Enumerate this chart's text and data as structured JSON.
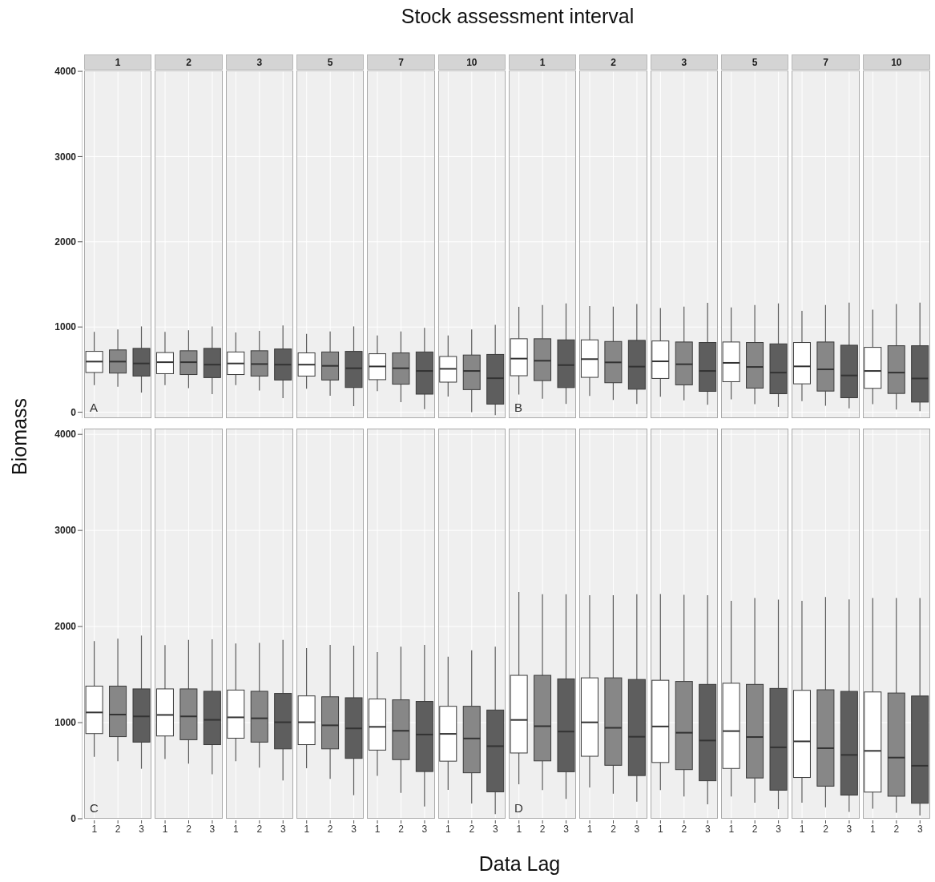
{
  "chart_data": [
    {
      "type": "other",
      "title": "Stock assessment interval",
      "xlabel": "Data Lag",
      "ylabel": "Biomass"
    },
    {
      "type": "box",
      "categories": [
        null,
        null,
        null,
        null,
        null,
        null,
        null,
        null,
        null,
        null,
        null,
        null,
        null,
        null,
        null,
        null,
        null,
        null,
        null,
        null,
        null,
        null,
        null,
        null,
        null,
        null,
        null,
        null,
        null,
        null,
        null,
        null,
        null,
        null,
        null,
        null
      ],
      "colors": [
        "#ffffff",
        "#878787",
        "#5e5e5e",
        "#ffffff",
        "#878787",
        "#5e5e5e",
        "#ffffff",
        "#878787",
        "#5e5e5e",
        "#ffffff",
        "#878787",
        "#5e5e5e",
        "#ffffff",
        "#878787",
        "#5e5e5e",
        "#ffffff",
        "#878787",
        "#5e5e5e",
        "#ffffff",
        "#878787",
        "#5e5e5e",
        "#ffffff",
        "#878787",
        "#5e5e5e",
        "#ffffff",
        "#878787",
        "#5e5e5e",
        "#ffffff",
        "#878787",
        "#5e5e5e",
        "#ffffff",
        "#878787",
        "#5e5e5e",
        "#ffffff",
        "#878787",
        "#5e5e5e"
      ],
      "ylim": [
        -70,
        4010
      ],
      "yticks": [
        0,
        1000,
        2000,
        3000,
        4000
      ],
      "grid": true,
      "tick_labels": "y",
      "annotations": [
        "1",
        "2",
        "3",
        "5",
        "7",
        "10",
        "1",
        "2",
        "3",
        "5",
        "7",
        "10",
        "A",
        "B"
      ],
      "boxes": [
        {
          "low": 318,
          "q1": 466,
          "median": 594,
          "q3": 714,
          "high": 943
        },
        {
          "low": 300,
          "q1": 459,
          "median": 594,
          "q3": 731,
          "high": 972
        },
        {
          "low": 230,
          "q1": 424,
          "median": 572,
          "q3": 749,
          "high": 1007
        },
        {
          "low": 318,
          "q1": 452,
          "median": 587,
          "q3": 700,
          "high": 943
        },
        {
          "low": 283,
          "q1": 442,
          "median": 587,
          "q3": 721,
          "high": 961
        },
        {
          "low": 212,
          "q1": 406,
          "median": 558,
          "q3": 749,
          "high": 1007
        },
        {
          "low": 318,
          "q1": 442,
          "median": 572,
          "q3": 707,
          "high": 936
        },
        {
          "low": 254,
          "q1": 424,
          "median": 565,
          "q3": 721,
          "high": 954
        },
        {
          "low": 166,
          "q1": 378,
          "median": 558,
          "q3": 742,
          "high": 1018
        },
        {
          "low": 276,
          "q1": 424,
          "median": 558,
          "q3": 696,
          "high": 919
        },
        {
          "low": 194,
          "q1": 378,
          "median": 544,
          "q3": 707,
          "high": 947
        },
        {
          "low": 71,
          "q1": 290,
          "median": 516,
          "q3": 714,
          "high": 1007
        },
        {
          "low": 247,
          "q1": 382,
          "median": 537,
          "q3": 686,
          "high": 901
        },
        {
          "low": 117,
          "q1": 329,
          "median": 516,
          "q3": 696,
          "high": 947
        },
        {
          "low": 35,
          "q1": 212,
          "median": 484,
          "q3": 707,
          "high": 989
        },
        {
          "low": 184,
          "q1": 353,
          "median": 509,
          "q3": 654,
          "high": 901
        },
        {
          "low": 0,
          "q1": 265,
          "median": 484,
          "q3": 671,
          "high": 972
        },
        {
          "low": -35,
          "q1": 95,
          "median": 399,
          "q3": 678,
          "high": 1025
        },
        {
          "low": 208,
          "q1": 428,
          "median": 629,
          "q3": 862,
          "high": 1236
        },
        {
          "low": 157,
          "q1": 371,
          "median": 604,
          "q3": 862,
          "high": 1258
        },
        {
          "low": 97,
          "q1": 289,
          "median": 553,
          "q3": 849,
          "high": 1277
        },
        {
          "low": 192,
          "q1": 409,
          "median": 623,
          "q3": 849,
          "high": 1245
        },
        {
          "low": 145,
          "q1": 346,
          "median": 585,
          "q3": 830,
          "high": 1239
        },
        {
          "low": 97,
          "q1": 270,
          "median": 535,
          "q3": 843,
          "high": 1270
        },
        {
          "low": 182,
          "q1": 396,
          "median": 597,
          "q3": 836,
          "high": 1223
        },
        {
          "low": 138,
          "q1": 321,
          "median": 563,
          "q3": 824,
          "high": 1239
        },
        {
          "low": 88,
          "q1": 245,
          "median": 484,
          "q3": 818,
          "high": 1283
        },
        {
          "low": 151,
          "q1": 358,
          "median": 579,
          "q3": 824,
          "high": 1230
        },
        {
          "low": 94,
          "q1": 283,
          "median": 531,
          "q3": 818,
          "high": 1258
        },
        {
          "low": 63,
          "q1": 217,
          "median": 465,
          "q3": 802,
          "high": 1277
        },
        {
          "low": 129,
          "q1": 333,
          "median": 538,
          "q3": 818,
          "high": 1189
        },
        {
          "low": 75,
          "q1": 248,
          "median": 503,
          "q3": 824,
          "high": 1258
        },
        {
          "low": 44,
          "q1": 170,
          "median": 431,
          "q3": 786,
          "high": 1286
        },
        {
          "low": 94,
          "q1": 280,
          "median": 484,
          "q3": 761,
          "high": 1204
        },
        {
          "low": 31,
          "q1": 220,
          "median": 465,
          "q3": 780,
          "high": 1270
        },
        {
          "low": 13,
          "q1": 119,
          "median": 396,
          "q3": 780,
          "high": 1286
        }
      ]
    },
    {
      "type": "box",
      "categories": [
        "1",
        "2",
        "3",
        "1",
        "2",
        "3",
        "1",
        "2",
        "3",
        "1",
        "2",
        "3",
        "1",
        "2",
        "3",
        "1",
        "2",
        "3",
        "1",
        "2",
        "3",
        "1",
        "2",
        "3",
        "1",
        "2",
        "3",
        "1",
        "2",
        "3",
        "1",
        "2",
        "3",
        "1",
        "2",
        "3"
      ],
      "colors": [
        "#ffffff",
        "#878787",
        "#5e5e5e",
        "#ffffff",
        "#878787",
        "#5e5e5e",
        "#ffffff",
        "#878787",
        "#5e5e5e",
        "#ffffff",
        "#878787",
        "#5e5e5e",
        "#ffffff",
        "#878787",
        "#5e5e5e",
        "#ffffff",
        "#878787",
        "#5e5e5e",
        "#ffffff",
        "#878787",
        "#5e5e5e",
        "#ffffff",
        "#878787",
        "#5e5e5e",
        "#ffffff",
        "#878787",
        "#5e5e5e",
        "#ffffff",
        "#878787",
        "#5e5e5e",
        "#ffffff",
        "#878787",
        "#5e5e5e",
        "#ffffff",
        "#878787",
        "#5e5e5e"
      ],
      "ylim": [
        0,
        4060
      ],
      "yticks": [
        0,
        1000,
        2000,
        3000,
        4000
      ],
      "grid": true,
      "annotations": [
        "C",
        "D"
      ],
      "boxes": [
        {
          "low": 644,
          "q1": 886,
          "median": 1106,
          "q3": 1380,
          "high": 1849
        },
        {
          "low": 599,
          "q1": 854,
          "median": 1084,
          "q3": 1380,
          "high": 1874
        },
        {
          "low": 520,
          "q1": 797,
          "median": 1065,
          "q3": 1351,
          "high": 1906
        },
        {
          "low": 622,
          "q1": 861,
          "median": 1080,
          "q3": 1351,
          "high": 1807
        },
        {
          "low": 574,
          "q1": 822,
          "median": 1065,
          "q3": 1351,
          "high": 1861
        },
        {
          "low": 462,
          "q1": 771,
          "median": 1029,
          "q3": 1326,
          "high": 1868
        },
        {
          "low": 599,
          "q1": 838,
          "median": 1055,
          "q3": 1339,
          "high": 1823
        },
        {
          "low": 532,
          "q1": 797,
          "median": 1045,
          "q3": 1326,
          "high": 1829
        },
        {
          "low": 398,
          "q1": 727,
          "median": 1004,
          "q3": 1304,
          "high": 1861
        },
        {
          "low": 526,
          "q1": 771,
          "median": 1004,
          "q3": 1278,
          "high": 1775
        },
        {
          "low": 414,
          "q1": 727,
          "median": 972,
          "q3": 1269,
          "high": 1810
        },
        {
          "low": 245,
          "q1": 628,
          "median": 940,
          "q3": 1259,
          "high": 1801
        },
        {
          "low": 446,
          "q1": 714,
          "median": 956,
          "q3": 1246,
          "high": 1734
        },
        {
          "low": 268,
          "q1": 615,
          "median": 915,
          "q3": 1237,
          "high": 1791
        },
        {
          "low": 127,
          "q1": 491,
          "median": 876,
          "q3": 1221,
          "high": 1810
        },
        {
          "low": 300,
          "q1": 599,
          "median": 883,
          "q3": 1170,
          "high": 1686
        },
        {
          "low": 159,
          "q1": 478,
          "median": 835,
          "q3": 1170,
          "high": 1753
        },
        {
          "low": 48,
          "q1": 280,
          "median": 755,
          "q3": 1131,
          "high": 1791
        },
        {
          "low": 359,
          "q1": 684,
          "median": 1028,
          "q3": 1492,
          "high": 2359
        },
        {
          "low": 297,
          "q1": 602,
          "median": 963,
          "q3": 1492,
          "high": 2336
        },
        {
          "low": 206,
          "q1": 489,
          "median": 907,
          "q3": 1455,
          "high": 2336
        },
        {
          "low": 325,
          "q1": 650,
          "median": 1003,
          "q3": 1466,
          "high": 2325
        },
        {
          "low": 260,
          "q1": 556,
          "median": 946,
          "q3": 1466,
          "high": 2325
        },
        {
          "low": 178,
          "q1": 449,
          "median": 853,
          "q3": 1449,
          "high": 2336
        },
        {
          "low": 297,
          "q1": 585,
          "median": 960,
          "q3": 1441,
          "high": 2339
        },
        {
          "low": 232,
          "q1": 511,
          "median": 895,
          "q3": 1429,
          "high": 2331
        },
        {
          "low": 150,
          "q1": 395,
          "median": 814,
          "q3": 1398,
          "high": 2325
        },
        {
          "low": 232,
          "q1": 523,
          "median": 912,
          "q3": 1410,
          "high": 2268
        },
        {
          "low": 167,
          "q1": 424,
          "median": 850,
          "q3": 1398,
          "high": 2297
        },
        {
          "low": 99,
          "q1": 297,
          "median": 743,
          "q3": 1356,
          "high": 2280
        },
        {
          "low": 167,
          "q1": 429,
          "median": 805,
          "q3": 1336,
          "high": 2268
        },
        {
          "low": 119,
          "q1": 339,
          "median": 734,
          "q3": 1342,
          "high": 2308
        },
        {
          "low": 71,
          "q1": 246,
          "median": 664,
          "q3": 1325,
          "high": 2282
        },
        {
          "low": 105,
          "q1": 277,
          "median": 706,
          "q3": 1319,
          "high": 2297
        },
        {
          "low": 62,
          "q1": 234,
          "median": 636,
          "q3": 1308,
          "high": 2297
        },
        {
          "low": 34,
          "q1": 161,
          "median": 551,
          "q3": 1277,
          "high": 2297
        }
      ]
    }
  ]
}
